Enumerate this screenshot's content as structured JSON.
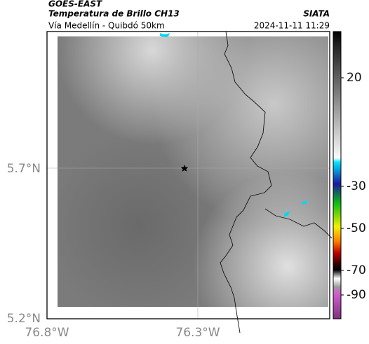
{
  "header": {
    "source": "GOES-EAST",
    "title": "Temperatura de Brillo CH13",
    "subtitle": "Vía Medellín - Quibdó 50km",
    "brand": "SIATA",
    "datetime": "2024-11-11 11:29"
  },
  "axes": {
    "lat_labels": [
      "5.7°N",
      "5.2°N"
    ],
    "lon_labels": [
      "76.8°W",
      "76.3°W"
    ]
  },
  "colorbar": {
    "ticks": [
      20,
      -30,
      -50,
      -70,
      -90
    ]
  }
}
